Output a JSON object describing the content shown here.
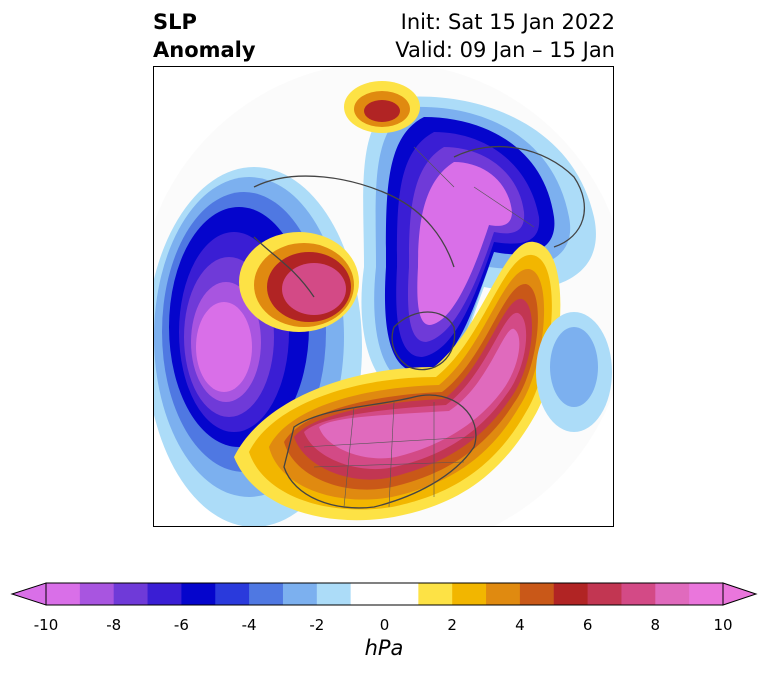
{
  "header": {
    "left_line1": "SLP",
    "left_line2": "Anomaly",
    "right_line1": "Init: Sat 15 Jan 2022",
    "right_line2": "Valid: 09 Jan – 15 Jan"
  },
  "map": {
    "projection": "north-polar-stereographic",
    "features": [
      "coastlines",
      "country-borders",
      "us-state-borders"
    ]
  },
  "colorbar": {
    "units": "hPa",
    "min": -10,
    "max": 10,
    "extend": "both",
    "ticks": [
      "-10",
      "-8",
      "-6",
      "-4",
      "-2",
      "0",
      "2",
      "4",
      "6",
      "8",
      "10"
    ],
    "colors": [
      "#d96fe8",
      "#a855e0",
      "#6f3ad8",
      "#3a1ed4",
      "#0505cc",
      "#2a3adc",
      "#4f78e2",
      "#7cb0ef",
      "#acdcf8",
      "#ffffff",
      "#ffffff",
      "#fde245",
      "#f2b600",
      "#e08a10",
      "#c95818",
      "#b12424",
      "#c23652",
      "#d34a86",
      "#e06abd",
      "#ea76dc"
    ]
  }
}
